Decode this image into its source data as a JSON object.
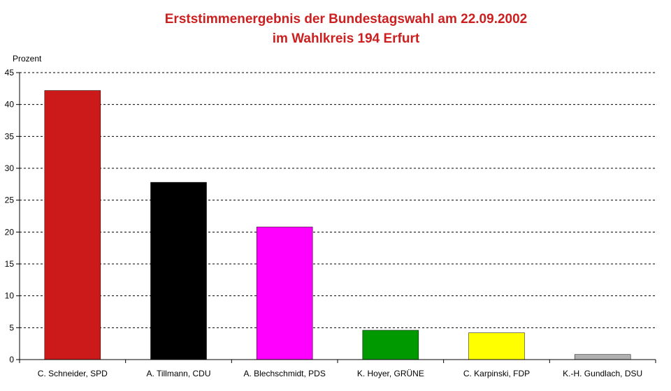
{
  "chart_data": {
    "type": "bar",
    "title": "Erststimmenergebnis der Bundestagswahl am 22.09.2002",
    "subtitle": "im Wahlkreis 194 Erfurt",
    "ylabel": "Prozent",
    "xlabel": "",
    "ylim": [
      0,
      45
    ],
    "yticks": [
      0,
      5,
      10,
      15,
      20,
      25,
      30,
      35,
      40,
      45
    ],
    "grid": true,
    "legend": "none",
    "categories": [
      "C. Schneider, SPD",
      "A. Tillmann, CDU",
      "A. Blechschmidt, PDS",
      "K. Hoyer, GRÜNE",
      "C. Karpinski, FDP",
      "K.-H. Gundlach, DSU"
    ],
    "values": [
      42.2,
      27.8,
      20.8,
      4.6,
      4.2,
      0.8
    ],
    "colors": [
      "#cc1a1a",
      "#000000",
      "#ff00ff",
      "#009900",
      "#ffff00",
      "#b0b0b0"
    ]
  }
}
